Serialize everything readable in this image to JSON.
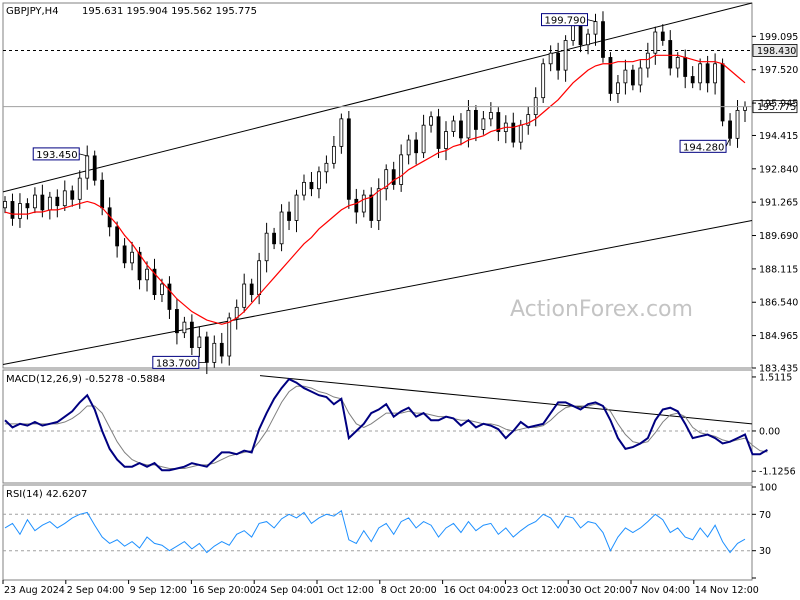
{
  "symbol_label": "GBPJPY,H4",
  "ohlc_label": "195.631 195.904 195.562 195.775",
  "watermark": "ActionForex.com",
  "colors": {
    "candle": "#000000",
    "ma": "#ff0000",
    "macd_main": "#000080",
    "macd_signal": "#808080",
    "rsi": "#1e90ff",
    "grid": "#a0a0a0"
  },
  "chart_data": [
    {
      "type": "line",
      "panel": "price",
      "yticks": [
        "199.095",
        "197.520",
        "195.945",
        "194.415",
        "192.840",
        "191.265",
        "189.690",
        "188.115",
        "186.540",
        "184.965",
        "183.435"
      ],
      "ylim": [
        183.435,
        200.67
      ],
      "x_labels": [
        "23 Aug 2024",
        "2 Sep 04:00",
        "9 Sep 12:00",
        "16 Sep 20:00",
        "24 Sep 04:00",
        "1 Oct 12:00",
        "8 Oct 20:00",
        "16 Oct 04:00",
        "23 Oct 12:00",
        "30 Oct 20:00",
        "7 Nov 04:00",
        "14 Nov 12:00"
      ],
      "series": [
        {
          "role": "close",
          "values": [
            191.3,
            190.5,
            191.2,
            191.0,
            191.6,
            190.9,
            191.5,
            191.1,
            191.8,
            191.4,
            192.4,
            193.45,
            192.3,
            191.0,
            190.1,
            189.2,
            188.4,
            188.9,
            187.6,
            188.1,
            186.9,
            187.4,
            186.2,
            185.1,
            185.6,
            184.4,
            184.9,
            183.7,
            184.6,
            184.0,
            185.8,
            186.3,
            187.4,
            186.9,
            188.5,
            189.8,
            189.3,
            190.8,
            190.4,
            191.6,
            192.2,
            191.9,
            192.7,
            193.1,
            193.9,
            195.2,
            191.4,
            190.8,
            191.6,
            190.4,
            191.9,
            192.8,
            192.1,
            193.5,
            194.2,
            193.6,
            194.9,
            195.3,
            193.8,
            194.6,
            195.1,
            194.3,
            195.6,
            194.7,
            195.2,
            195.5,
            194.6,
            195.0,
            194.1,
            194.9,
            195.4,
            196.2,
            197.8,
            198.3,
            197.5,
            198.9,
            199.6,
            198.7,
            199.2,
            199.79,
            198.1,
            196.4,
            196.9,
            197.5,
            196.8,
            197.6,
            198.3,
            199.3,
            198.9,
            197.6,
            198.1,
            197.2,
            196.9,
            197.8,
            196.9,
            197.8,
            195.1,
            194.28,
            195.6,
            195.775
          ]
        },
        {
          "role": "moving_average",
          "values": [
            190.8,
            190.7,
            190.7,
            190.7,
            190.8,
            190.8,
            190.9,
            190.9,
            191.0,
            191.1,
            191.2,
            191.3,
            191.2,
            191.0,
            190.6,
            190.2,
            189.7,
            189.3,
            188.8,
            188.3,
            187.9,
            187.5,
            187.1,
            186.7,
            186.4,
            186.1,
            185.9,
            185.7,
            185.6,
            185.5,
            185.6,
            185.8,
            186.1,
            186.5,
            186.9,
            187.3,
            187.7,
            188.1,
            188.5,
            188.9,
            189.3,
            189.6,
            190.0,
            190.3,
            190.6,
            190.9,
            191.1,
            191.2,
            191.4,
            191.5,
            191.8,
            192.0,
            192.3,
            192.5,
            192.8,
            193.0,
            193.2,
            193.4,
            193.6,
            193.7,
            193.9,
            194.0,
            194.2,
            194.3,
            194.4,
            194.6,
            194.7,
            194.8,
            194.8,
            194.9,
            195.0,
            195.2,
            195.5,
            195.8,
            196.1,
            196.5,
            196.9,
            197.2,
            197.5,
            197.7,
            197.8,
            197.8,
            197.9,
            197.9,
            197.9,
            198.0,
            198.0,
            198.2,
            198.2,
            198.2,
            198.2,
            198.1,
            198.0,
            197.9,
            197.9,
            197.9,
            197.8,
            197.5,
            197.2,
            196.9
          ]
        }
      ],
      "horizontal_levels": [
        {
          "value": 198.43,
          "label": "198.430"
        },
        {
          "value": 195.775,
          "label": "195.775"
        }
      ],
      "annotations": [
        {
          "value": 193.45,
          "label": "193.450"
        },
        {
          "value": 183.7,
          "label": "183.700"
        },
        {
          "value": 199.79,
          "label": "199.790"
        },
        {
          "value": 194.28,
          "label": "194.280"
        }
      ],
      "trend_channel": [
        {
          "from": 191.75,
          "to": 200.67
        },
        {
          "from": 183.6,
          "to": 190.4
        }
      ]
    },
    {
      "type": "line",
      "panel": "macd",
      "title": "MACD(12,26,9) -0.5278 -0.5884",
      "yticks": [
        "1.5115",
        "0.00",
        "-1.1256"
      ],
      "ylim": [
        -1.4,
        1.65
      ],
      "series": [
        {
          "role": "main",
          "values": [
            0.3,
            0.1,
            0.2,
            0.15,
            0.25,
            0.15,
            0.2,
            0.25,
            0.4,
            0.55,
            0.8,
            1.0,
            0.6,
            0.0,
            -0.5,
            -0.8,
            -1.0,
            -1.0,
            -0.9,
            -1.0,
            -0.9,
            -1.1,
            -1.1,
            -1.05,
            -1.0,
            -0.9,
            -0.95,
            -1.0,
            -0.8,
            -0.6,
            -0.6,
            -0.65,
            -0.55,
            -0.6,
            0.05,
            0.5,
            0.9,
            1.2,
            1.45,
            1.35,
            1.2,
            1.1,
            1.0,
            0.95,
            0.75,
            0.9,
            -0.2,
            0.0,
            0.2,
            0.5,
            0.6,
            0.75,
            0.4,
            0.55,
            0.65,
            0.4,
            0.5,
            0.3,
            0.3,
            0.4,
            0.35,
            0.15,
            0.3,
            0.1,
            0.2,
            0.15,
            0.05,
            -0.2,
            0.0,
            0.25,
            0.1,
            0.15,
            0.2,
            0.5,
            0.8,
            0.8,
            0.7,
            0.6,
            0.75,
            0.8,
            0.7,
            0.3,
            -0.2,
            -0.5,
            -0.45,
            -0.35,
            -0.2,
            0.3,
            0.6,
            0.65,
            0.55,
            0.2,
            -0.2,
            -0.15,
            -0.1,
            -0.2,
            -0.35,
            -0.3,
            -0.2,
            -0.1,
            -0.65,
            -0.65,
            -0.53
          ]
        },
        {
          "role": "signal",
          "values": [
            0.2,
            0.2,
            0.2,
            0.2,
            0.2,
            0.2,
            0.2,
            0.2,
            0.25,
            0.35,
            0.5,
            0.7,
            0.7,
            0.5,
            0.1,
            -0.3,
            -0.6,
            -0.8,
            -0.9,
            -0.95,
            -0.95,
            -1.0,
            -1.05,
            -1.05,
            -1.05,
            -1.0,
            -0.95,
            -0.95,
            -0.9,
            -0.8,
            -0.7,
            -0.65,
            -0.6,
            -0.55,
            -0.3,
            0.0,
            0.4,
            0.8,
            1.1,
            1.25,
            1.25,
            1.2,
            1.1,
            1.05,
            0.95,
            0.9,
            0.5,
            0.2,
            0.1,
            0.2,
            0.35,
            0.5,
            0.5,
            0.5,
            0.55,
            0.5,
            0.5,
            0.45,
            0.4,
            0.4,
            0.35,
            0.3,
            0.3,
            0.25,
            0.2,
            0.2,
            0.15,
            0.05,
            0.0,
            0.05,
            0.1,
            0.1,
            0.15,
            0.3,
            0.5,
            0.65,
            0.7,
            0.7,
            0.7,
            0.75,
            0.7,
            0.55,
            0.2,
            -0.1,
            -0.3,
            -0.35,
            -0.3,
            -0.05,
            0.25,
            0.45,
            0.5,
            0.4,
            0.1,
            -0.05,
            -0.1,
            -0.15,
            -0.25,
            -0.3,
            -0.25,
            -0.2,
            -0.4,
            -0.55,
            -0.59
          ]
        }
      ],
      "trend_line": {
        "from": 1.55,
        "to": 0.2
      }
    },
    {
      "type": "line",
      "panel": "rsi",
      "title": "RSI(14) 42.6207",
      "yticks": [
        "100",
        "70",
        "30",
        "0"
      ],
      "ylim": [
        0,
        100
      ],
      "levels": [
        70,
        30
      ],
      "series": [
        {
          "role": "rsi",
          "values": [
            55,
            60,
            48,
            64,
            52,
            58,
            62,
            55,
            60,
            66,
            70,
            72,
            58,
            45,
            38,
            42,
            35,
            40,
            33,
            45,
            38,
            36,
            30,
            35,
            40,
            32,
            38,
            28,
            35,
            40,
            36,
            48,
            52,
            45,
            60,
            62,
            55,
            65,
            70,
            66,
            72,
            60,
            66,
            70,
            68,
            74,
            42,
            38,
            52,
            40,
            55,
            60,
            48,
            62,
            66,
            55,
            62,
            58,
            45,
            55,
            60,
            50,
            62,
            52,
            58,
            60,
            48,
            55,
            45,
            52,
            58,
            62,
            70,
            66,
            55,
            68,
            66,
            55,
            62,
            60,
            50,
            30,
            45,
            55,
            50,
            55,
            62,
            70,
            64,
            50,
            55,
            45,
            42,
            55,
            45,
            58,
            40,
            28,
            38,
            42.62
          ]
        }
      ]
    }
  ]
}
